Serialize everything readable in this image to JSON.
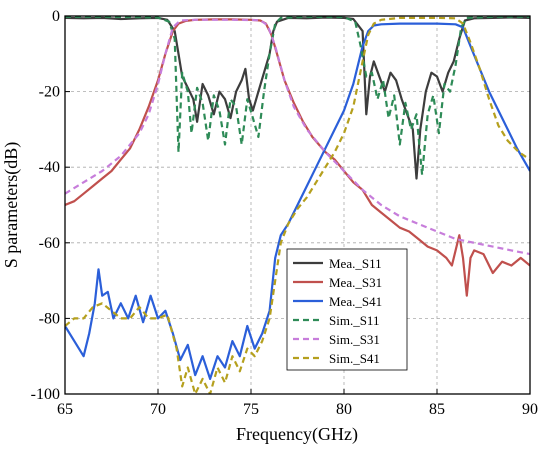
{
  "chart_data": {
    "type": "line",
    "title": "",
    "xlabel": "Frequency(GHz)",
    "ylabel": "S parameters(dB)",
    "xlim": [
      65,
      90
    ],
    "ylim": [
      -100,
      0
    ],
    "xticks": [
      "65",
      "70",
      "75",
      "80",
      "85",
      "90"
    ],
    "yticks": [
      "0",
      "-20",
      "-40",
      "-60",
      "-80",
      "-100"
    ],
    "grid": true,
    "legend_position": "lower-right",
    "series": [
      {
        "name": "Mea._S11",
        "color": "#3d3d3d",
        "dash": "solid",
        "points": [
          [
            65,
            -0.5
          ],
          [
            66,
            -0.6
          ],
          [
            67,
            -0.5
          ],
          [
            68,
            -0.8
          ],
          [
            69,
            -0.6
          ],
          [
            70,
            -0.5
          ],
          [
            70.5,
            -1.0
          ],
          [
            70.9,
            -4
          ],
          [
            71.1,
            -10
          ],
          [
            71.3,
            -16
          ],
          [
            71.6,
            -19
          ],
          [
            71.9,
            -22
          ],
          [
            72.1,
            -28
          ],
          [
            72.4,
            -18
          ],
          [
            72.7,
            -21
          ],
          [
            73,
            -26
          ],
          [
            73.3,
            -20
          ],
          [
            73.6,
            -22
          ],
          [
            73.9,
            -27
          ],
          [
            74.2,
            -20
          ],
          [
            74.5,
            -17
          ],
          [
            74.7,
            -14
          ],
          [
            74.9,
            -22
          ],
          [
            75.1,
            -25
          ],
          [
            75.4,
            -20
          ],
          [
            75.7,
            -15
          ],
          [
            76,
            -10
          ],
          [
            76.2,
            -4
          ],
          [
            76.4,
            -1.5
          ],
          [
            77,
            -0.5
          ],
          [
            78,
            -0.6
          ],
          [
            79,
            -0.4
          ],
          [
            80,
            -0.5
          ],
          [
            80.5,
            -0.8
          ],
          [
            81,
            -4
          ],
          [
            81.2,
            -26
          ],
          [
            81.4,
            -16
          ],
          [
            81.6,
            -12
          ],
          [
            81.9,
            -16
          ],
          [
            82.2,
            -20
          ],
          [
            82.5,
            -15
          ],
          [
            82.8,
            -17
          ],
          [
            83.1,
            -22
          ],
          [
            83.4,
            -26
          ],
          [
            83.7,
            -30
          ],
          [
            83.9,
            -43
          ],
          [
            84.1,
            -30
          ],
          [
            84.4,
            -20
          ],
          [
            84.7,
            -15
          ],
          [
            85,
            -16
          ],
          [
            85.3,
            -20
          ],
          [
            85.6,
            -15
          ],
          [
            85.9,
            -12
          ],
          [
            86.2,
            -6
          ],
          [
            86.5,
            -1.2
          ],
          [
            87,
            -0.6
          ],
          [
            88,
            -0.5
          ],
          [
            89,
            -0.4
          ],
          [
            90,
            -0.5
          ]
        ]
      },
      {
        "name": "Mea._S31",
        "color": "#c0504d",
        "dash": "solid",
        "points": [
          [
            65,
            -50
          ],
          [
            65.5,
            -49
          ],
          [
            66,
            -47
          ],
          [
            66.5,
            -45
          ],
          [
            67,
            -43
          ],
          [
            67.5,
            -41
          ],
          [
            68,
            -38
          ],
          [
            68.5,
            -35
          ],
          [
            69,
            -30
          ],
          [
            69.5,
            -24
          ],
          [
            70,
            -17
          ],
          [
            70.4,
            -10
          ],
          [
            70.8,
            -4
          ],
          [
            71.1,
            -2
          ],
          [
            71.5,
            -1.3
          ],
          [
            72,
            -1.0
          ],
          [
            73,
            -0.9
          ],
          [
            74,
            -0.9
          ],
          [
            75,
            -1.0
          ],
          [
            75.5,
            -1.2
          ],
          [
            75.8,
            -2
          ],
          [
            76.1,
            -5
          ],
          [
            76.4,
            -10
          ],
          [
            76.8,
            -17
          ],
          [
            77.3,
            -23
          ],
          [
            77.8,
            -28
          ],
          [
            78.3,
            -32
          ],
          [
            79,
            -36
          ],
          [
            79.5,
            -38
          ],
          [
            80,
            -41
          ],
          [
            80.5,
            -44
          ],
          [
            81,
            -46
          ],
          [
            81.5,
            -50
          ],
          [
            82,
            -52
          ],
          [
            82.5,
            -54
          ],
          [
            83,
            -56
          ],
          [
            83.5,
            -57
          ],
          [
            84,
            -59
          ],
          [
            84.5,
            -61
          ],
          [
            85,
            -62
          ],
          [
            85.5,
            -64
          ],
          [
            85.8,
            -66
          ],
          [
            86,
            -62
          ],
          [
            86.2,
            -58
          ],
          [
            86.4,
            -64
          ],
          [
            86.6,
            -74
          ],
          [
            86.8,
            -64
          ],
          [
            87,
            -62
          ],
          [
            87.5,
            -63
          ],
          [
            88,
            -68
          ],
          [
            88.5,
            -65
          ],
          [
            89,
            -66
          ],
          [
            89.5,
            -64
          ],
          [
            90,
            -66
          ]
        ]
      },
      {
        "name": "Mea._S41",
        "color": "#2b5fd9",
        "dash": "solid",
        "points": [
          [
            65,
            -82
          ],
          [
            65.5,
            -86
          ],
          [
            66,
            -90
          ],
          [
            66.3,
            -84
          ],
          [
            66.6,
            -76
          ],
          [
            66.8,
            -67
          ],
          [
            67,
            -74
          ],
          [
            67.3,
            -73
          ],
          [
            67.6,
            -80
          ],
          [
            68,
            -76
          ],
          [
            68.4,
            -80
          ],
          [
            68.8,
            -74
          ],
          [
            69.2,
            -81
          ],
          [
            69.6,
            -74
          ],
          [
            70,
            -80
          ],
          [
            70.4,
            -78
          ],
          [
            70.8,
            -84
          ],
          [
            71.2,
            -91
          ],
          [
            71.6,
            -87
          ],
          [
            72,
            -95
          ],
          [
            72.4,
            -90
          ],
          [
            72.8,
            -96
          ],
          [
            73.2,
            -90
          ],
          [
            73.6,
            -93
          ],
          [
            74,
            -86
          ],
          [
            74.4,
            -90
          ],
          [
            74.8,
            -82
          ],
          [
            75.2,
            -88
          ],
          [
            75.6,
            -84
          ],
          [
            76,
            -78
          ],
          [
            76.3,
            -64
          ],
          [
            76.6,
            -58
          ],
          [
            77,
            -55
          ],
          [
            77.5,
            -50
          ],
          [
            78,
            -45
          ],
          [
            78.5,
            -40
          ],
          [
            79,
            -35
          ],
          [
            79.5,
            -30
          ],
          [
            80,
            -25
          ],
          [
            80.5,
            -18
          ],
          [
            81,
            -8
          ],
          [
            81.3,
            -4
          ],
          [
            81.6,
            -2.5
          ],
          [
            82,
            -2.2
          ],
          [
            83,
            -2.0
          ],
          [
            84,
            -2.0
          ],
          [
            85,
            -2.0
          ],
          [
            86,
            -2.2
          ],
          [
            86.4,
            -3
          ],
          [
            86.8,
            -8
          ],
          [
            87.3,
            -14
          ],
          [
            87.8,
            -20
          ],
          [
            88.3,
            -25
          ],
          [
            88.8,
            -30
          ],
          [
            89.3,
            -35
          ],
          [
            90,
            -41
          ]
        ]
      },
      {
        "name": "Sim._S11",
        "color": "#2e8b57",
        "dash": "dashed",
        "points": [
          [
            65,
            -0.2
          ],
          [
            67,
            -0.2
          ],
          [
            69,
            -0.3
          ],
          [
            70,
            -0.4
          ],
          [
            70.6,
            -1.5
          ],
          [
            70.9,
            -6
          ],
          [
            71.1,
            -36
          ],
          [
            71.3,
            -15
          ],
          [
            71.6,
            -20
          ],
          [
            71.8,
            -31
          ],
          [
            72.1,
            -19
          ],
          [
            72.4,
            -23
          ],
          [
            72.7,
            -33
          ],
          [
            73,
            -21
          ],
          [
            73.3,
            -25
          ],
          [
            73.6,
            -34
          ],
          [
            73.9,
            -22
          ],
          [
            74.2,
            -24
          ],
          [
            74.5,
            -34
          ],
          [
            74.8,
            -22
          ],
          [
            75.1,
            -27
          ],
          [
            75.4,
            -32
          ],
          [
            75.7,
            -20
          ],
          [
            76,
            -10
          ],
          [
            76.3,
            -2
          ],
          [
            76.6,
            -0.5
          ],
          [
            78,
            -0.2
          ],
          [
            80,
            -0.3
          ],
          [
            80.6,
            -1.5
          ],
          [
            80.9,
            -8
          ],
          [
            81.2,
            -16
          ],
          [
            81.5,
            -15
          ],
          [
            81.8,
            -22
          ],
          [
            82.1,
            -17
          ],
          [
            82.4,
            -27
          ],
          [
            82.7,
            -21
          ],
          [
            83,
            -34
          ],
          [
            83.3,
            -23
          ],
          [
            83.6,
            -30
          ],
          [
            83.9,
            -26
          ],
          [
            84.2,
            -42
          ],
          [
            84.5,
            -26
          ],
          [
            84.8,
            -21
          ],
          [
            85.1,
            -31
          ],
          [
            85.4,
            -18
          ],
          [
            85.7,
            -20
          ],
          [
            86,
            -13
          ],
          [
            86.3,
            -3
          ],
          [
            86.6,
            -0.5
          ],
          [
            88,
            -0.2
          ],
          [
            90,
            -0.2
          ]
        ]
      },
      {
        "name": "Sim._S31",
        "color": "#c77ddb",
        "dash": "dashed",
        "points": [
          [
            65,
            -47
          ],
          [
            66,
            -44
          ],
          [
            67,
            -41
          ],
          [
            68,
            -37
          ],
          [
            69,
            -31
          ],
          [
            69.5,
            -26
          ],
          [
            70,
            -18
          ],
          [
            70.4,
            -10
          ],
          [
            70.8,
            -3
          ],
          [
            71.2,
            -1.2
          ],
          [
            72,
            -1.0
          ],
          [
            74,
            -1.0
          ],
          [
            75.5,
            -1.1
          ],
          [
            75.9,
            -2.5
          ],
          [
            76.3,
            -8
          ],
          [
            76.8,
            -17
          ],
          [
            77.3,
            -24
          ],
          [
            78,
            -30
          ],
          [
            79,
            -36
          ],
          [
            80,
            -41
          ],
          [
            81,
            -46
          ],
          [
            82,
            -50
          ],
          [
            83,
            -53
          ],
          [
            84,
            -55
          ],
          [
            85,
            -57
          ],
          [
            86,
            -59
          ],
          [
            87,
            -60
          ],
          [
            88,
            -61
          ],
          [
            89,
            -62
          ],
          [
            90,
            -63
          ]
        ]
      },
      {
        "name": "Sim._S41",
        "color": "#b5a01e",
        "dash": "dashed",
        "points": [
          [
            65,
            -82
          ],
          [
            65.5,
            -80
          ],
          [
            66,
            -80
          ],
          [
            66.5,
            -77
          ],
          [
            67,
            -76
          ],
          [
            67.5,
            -78
          ],
          [
            68,
            -80
          ],
          [
            68.5,
            -80
          ],
          [
            69,
            -77
          ],
          [
            69.5,
            -80
          ],
          [
            70,
            -80
          ],
          [
            70.5,
            -79
          ],
          [
            71,
            -88
          ],
          [
            71.3,
            -98
          ],
          [
            71.6,
            -93
          ],
          [
            72,
            -100
          ],
          [
            72.4,
            -96
          ],
          [
            72.8,
            -100
          ],
          [
            73.2,
            -93
          ],
          [
            73.6,
            -97
          ],
          [
            74,
            -90
          ],
          [
            74.4,
            -94
          ],
          [
            74.8,
            -88
          ],
          [
            75.2,
            -90
          ],
          [
            75.6,
            -86
          ],
          [
            76,
            -80
          ],
          [
            76.3,
            -70
          ],
          [
            76.6,
            -60
          ],
          [
            77,
            -55
          ],
          [
            77.5,
            -51
          ],
          [
            78,
            -48
          ],
          [
            78.5,
            -44
          ],
          [
            79,
            -40
          ],
          [
            79.5,
            -36
          ],
          [
            80,
            -31
          ],
          [
            80.5,
            -24
          ],
          [
            81,
            -12
          ],
          [
            81.3,
            -5
          ],
          [
            81.6,
            -2
          ],
          [
            82,
            -1
          ],
          [
            83,
            -0.5
          ],
          [
            84,
            -0.5
          ],
          [
            85,
            -0.5
          ],
          [
            86,
            -0.6
          ],
          [
            86.4,
            -2
          ],
          [
            86.8,
            -7
          ],
          [
            87.3,
            -14
          ],
          [
            87.8,
            -22
          ],
          [
            88.3,
            -29
          ],
          [
            88.8,
            -33
          ],
          [
            89.4,
            -36
          ],
          [
            90,
            -38
          ]
        ]
      }
    ]
  }
}
